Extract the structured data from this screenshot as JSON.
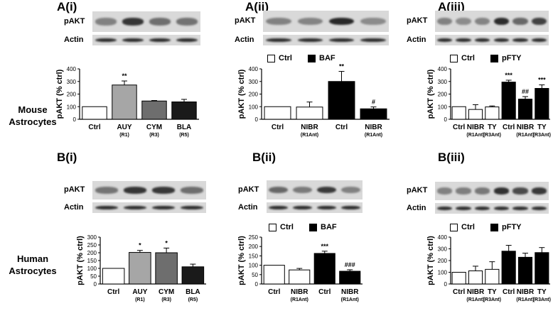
{
  "row_labels": {
    "mouse": [
      "Mouse",
      "Astrocytes"
    ],
    "human": [
      "Human",
      "Astrocytes"
    ]
  },
  "panels": [
    {
      "id": "Ai",
      "label": "A(i)",
      "blots": [
        "pAKT",
        "Actin"
      ],
      "legend": [],
      "chart_data": {
        "type": "bar",
        "ylabel": "pAKT (% ctrl)",
        "ylim": [
          0,
          400
        ],
        "yticks": [
          0,
          100,
          200,
          300,
          400
        ],
        "categories": [
          {
            "name": "Ctrl",
            "sub": ""
          },
          {
            "name": "AUY",
            "sub": "(R1)"
          },
          {
            "name": "CYM",
            "sub": "(R3)"
          },
          {
            "name": "BLA",
            "sub": "(R5)"
          }
        ],
        "values": [
          100,
          272,
          145,
          138
        ],
        "errors": [
          0,
          32,
          4,
          20
        ],
        "colors": [
          "#ffffff",
          "#a6a6a6",
          "#6e6e6e",
          "#1a1a1a"
        ],
        "annotations": [
          "",
          "**",
          "",
          ""
        ]
      }
    },
    {
      "id": "Aii",
      "label": "A(ii)",
      "blots": [
        "pAKT",
        "Actin"
      ],
      "legend": [
        {
          "label": "Ctrl",
          "color": "#ffffff"
        },
        {
          "label": "BAF",
          "color": "#000000"
        }
      ],
      "chart_data": {
        "type": "bar",
        "ylabel": "pAKT (% ctrl)",
        "ylim": [
          0,
          400
        ],
        "yticks": [
          0,
          100,
          200,
          300,
          400
        ],
        "categories": [
          {
            "name": "Ctrl",
            "sub": ""
          },
          {
            "name": "NIBR",
            "sub": "(R1Ant)"
          },
          {
            "name": "Ctrl",
            "sub": ""
          },
          {
            "name": "NIBR",
            "sub": "(R1Ant)"
          }
        ],
        "values": [
          100,
          97,
          300,
          83
        ],
        "errors": [
          0,
          40,
          80,
          15
        ],
        "colors": [
          "#ffffff",
          "#ffffff",
          "#000000",
          "#000000"
        ],
        "annotations": [
          "",
          "",
          "**",
          "#"
        ]
      }
    },
    {
      "id": "Aiii",
      "label": "A(iii)",
      "blots": [
        "pAKT",
        "Actin"
      ],
      "legend": [
        {
          "label": "Ctrl",
          "color": "#ffffff"
        },
        {
          "label": "pFTY",
          "color": "#000000"
        }
      ],
      "chart_data": {
        "type": "bar",
        "ylabel": "pAKT (% ctrl)",
        "ylim": [
          0,
          400
        ],
        "yticks": [
          0,
          100,
          200,
          300,
          400
        ],
        "categories": [
          {
            "name": "Ctrl",
            "sub": ""
          },
          {
            "name": "NIBR",
            "sub": "(R1Ant)"
          },
          {
            "name": "TY",
            "sub": "(R3Ant)"
          },
          {
            "name": "Ctrl",
            "sub": ""
          },
          {
            "name": "NIBR",
            "sub": "(R1Ant)"
          },
          {
            "name": "TY",
            "sub": "(R3Ant)"
          }
        ],
        "values": [
          100,
          78,
          98,
          295,
          160,
          245
        ],
        "errors": [
          0,
          38,
          8,
          15,
          20,
          28
        ],
        "colors": [
          "#ffffff",
          "#ffffff",
          "#ffffff",
          "#000000",
          "#000000",
          "#000000"
        ],
        "annotations": [
          "",
          "",
          "",
          "***",
          "##",
          "***"
        ]
      }
    },
    {
      "id": "Bi",
      "label": "B(i)",
      "blots": [
        "pAKT",
        "Actin"
      ],
      "legend": [],
      "chart_data": {
        "type": "bar",
        "ylabel": "pAKT (% ctrl)",
        "ylim": [
          0,
          300
        ],
        "yticks": [
          0,
          50,
          100,
          150,
          200,
          250,
          300
        ],
        "categories": [
          {
            "name": "Ctrl",
            "sub": ""
          },
          {
            "name": "AUY",
            "sub": "(R1)"
          },
          {
            "name": "CYM",
            "sub": "(R3)"
          },
          {
            "name": "BLA",
            "sub": "(R5)"
          }
        ],
        "values": [
          100,
          202,
          200,
          110
        ],
        "errors": [
          0,
          13,
          30,
          17
        ],
        "colors": [
          "#ffffff",
          "#a6a6a6",
          "#6e6e6e",
          "#1a1a1a"
        ],
        "annotations": [
          "",
          "*",
          "*",
          ""
        ]
      }
    },
    {
      "id": "Bii",
      "label": "B(ii)",
      "blots": [
        "pAKT",
        "Actin"
      ],
      "legend": [
        {
          "label": "Ctrl",
          "color": "#ffffff"
        },
        {
          "label": "BAF",
          "color": "#000000"
        }
      ],
      "chart_data": {
        "type": "bar",
        "ylabel": "pAKT (% ctrl)",
        "ylim": [
          0,
          250
        ],
        "yticks": [
          0,
          50,
          100,
          150,
          200,
          250
        ],
        "categories": [
          {
            "name": "Ctrl",
            "sub": ""
          },
          {
            "name": "NIBR",
            "sub": "(R1Ant)"
          },
          {
            "name": "Ctrl",
            "sub": ""
          },
          {
            "name": "NIBR",
            "sub": "(R1Ant)"
          }
        ],
        "values": [
          100,
          75,
          163,
          68
        ],
        "errors": [
          0,
          8,
          12,
          8
        ],
        "colors": [
          "#ffffff",
          "#ffffff",
          "#000000",
          "#000000"
        ],
        "annotations": [
          "",
          "",
          "***",
          "###"
        ]
      }
    },
    {
      "id": "Biii",
      "label": "B(iii)",
      "blots": [
        "pAKT",
        "Actin"
      ],
      "legend": [
        {
          "label": "Ctrl",
          "color": "#ffffff"
        },
        {
          "label": "pFTY",
          "color": "#000000"
        }
      ],
      "chart_data": {
        "type": "bar",
        "ylabel": "pAKT (% ctrl)",
        "ylim": [
          0,
          400
        ],
        "yticks": [
          0,
          100,
          200,
          300,
          400
        ],
        "categories": [
          {
            "name": "Ctrl",
            "sub": ""
          },
          {
            "name": "NIBR",
            "sub": "(R1Ant)"
          },
          {
            "name": "TY",
            "sub": "(R3Ant)"
          },
          {
            "name": "Ctrl",
            "sub": ""
          },
          {
            "name": "NIBR",
            "sub": "(R1Ant)"
          },
          {
            "name": "TY",
            "sub": "(R3Ant)"
          }
        ],
        "values": [
          100,
          112,
          125,
          280,
          228,
          268
        ],
        "errors": [
          0,
          40,
          65,
          50,
          35,
          43
        ],
        "colors": [
          "#ffffff",
          "#ffffff",
          "#ffffff",
          "#000000",
          "#000000",
          "#000000"
        ],
        "annotations": [
          "",
          "",
          "",
          "",
          "",
          ""
        ]
      }
    }
  ]
}
